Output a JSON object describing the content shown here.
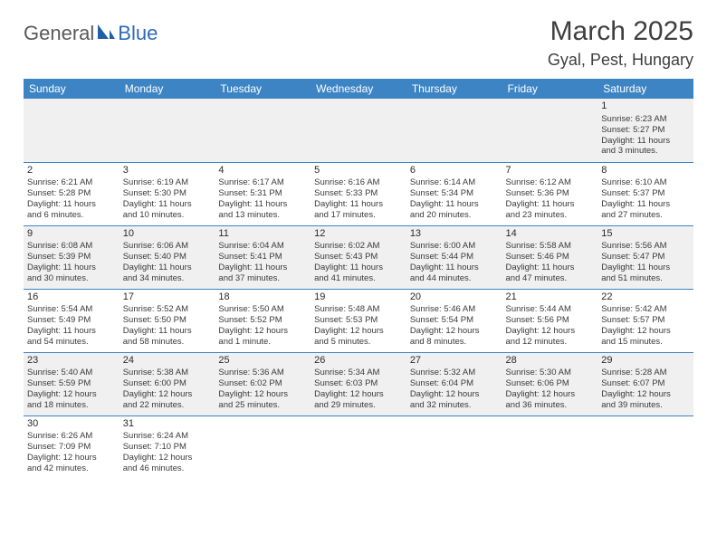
{
  "logo": {
    "general": "General",
    "blue": "Blue"
  },
  "title": {
    "month": "March 2025",
    "location": "Gyal, Pest, Hungary"
  },
  "days": [
    "Sunday",
    "Monday",
    "Tuesday",
    "Wednesday",
    "Thursday",
    "Friday",
    "Saturday"
  ],
  "colors": {
    "header_bg": "#3d84c5",
    "header_fg": "#ffffff",
    "alt_bg": "#f0f0f0",
    "text": "#3a3a3a"
  },
  "weeks": [
    [
      null,
      null,
      null,
      null,
      null,
      null,
      {
        "n": "1",
        "sr": "Sunrise: 6:23 AM",
        "ss": "Sunset: 5:27 PM",
        "d1": "Daylight: 11 hours",
        "d2": "and 3 minutes."
      }
    ],
    [
      {
        "n": "2",
        "sr": "Sunrise: 6:21 AM",
        "ss": "Sunset: 5:28 PM",
        "d1": "Daylight: 11 hours",
        "d2": "and 6 minutes."
      },
      {
        "n": "3",
        "sr": "Sunrise: 6:19 AM",
        "ss": "Sunset: 5:30 PM",
        "d1": "Daylight: 11 hours",
        "d2": "and 10 minutes."
      },
      {
        "n": "4",
        "sr": "Sunrise: 6:17 AM",
        "ss": "Sunset: 5:31 PM",
        "d1": "Daylight: 11 hours",
        "d2": "and 13 minutes."
      },
      {
        "n": "5",
        "sr": "Sunrise: 6:16 AM",
        "ss": "Sunset: 5:33 PM",
        "d1": "Daylight: 11 hours",
        "d2": "and 17 minutes."
      },
      {
        "n": "6",
        "sr": "Sunrise: 6:14 AM",
        "ss": "Sunset: 5:34 PM",
        "d1": "Daylight: 11 hours",
        "d2": "and 20 minutes."
      },
      {
        "n": "7",
        "sr": "Sunrise: 6:12 AM",
        "ss": "Sunset: 5:36 PM",
        "d1": "Daylight: 11 hours",
        "d2": "and 23 minutes."
      },
      {
        "n": "8",
        "sr": "Sunrise: 6:10 AM",
        "ss": "Sunset: 5:37 PM",
        "d1": "Daylight: 11 hours",
        "d2": "and 27 minutes."
      }
    ],
    [
      {
        "n": "9",
        "sr": "Sunrise: 6:08 AM",
        "ss": "Sunset: 5:39 PM",
        "d1": "Daylight: 11 hours",
        "d2": "and 30 minutes."
      },
      {
        "n": "10",
        "sr": "Sunrise: 6:06 AM",
        "ss": "Sunset: 5:40 PM",
        "d1": "Daylight: 11 hours",
        "d2": "and 34 minutes."
      },
      {
        "n": "11",
        "sr": "Sunrise: 6:04 AM",
        "ss": "Sunset: 5:41 PM",
        "d1": "Daylight: 11 hours",
        "d2": "and 37 minutes."
      },
      {
        "n": "12",
        "sr": "Sunrise: 6:02 AM",
        "ss": "Sunset: 5:43 PM",
        "d1": "Daylight: 11 hours",
        "d2": "and 41 minutes."
      },
      {
        "n": "13",
        "sr": "Sunrise: 6:00 AM",
        "ss": "Sunset: 5:44 PM",
        "d1": "Daylight: 11 hours",
        "d2": "and 44 minutes."
      },
      {
        "n": "14",
        "sr": "Sunrise: 5:58 AM",
        "ss": "Sunset: 5:46 PM",
        "d1": "Daylight: 11 hours",
        "d2": "and 47 minutes."
      },
      {
        "n": "15",
        "sr": "Sunrise: 5:56 AM",
        "ss": "Sunset: 5:47 PM",
        "d1": "Daylight: 11 hours",
        "d2": "and 51 minutes."
      }
    ],
    [
      {
        "n": "16",
        "sr": "Sunrise: 5:54 AM",
        "ss": "Sunset: 5:49 PM",
        "d1": "Daylight: 11 hours",
        "d2": "and 54 minutes."
      },
      {
        "n": "17",
        "sr": "Sunrise: 5:52 AM",
        "ss": "Sunset: 5:50 PM",
        "d1": "Daylight: 11 hours",
        "d2": "and 58 minutes."
      },
      {
        "n": "18",
        "sr": "Sunrise: 5:50 AM",
        "ss": "Sunset: 5:52 PM",
        "d1": "Daylight: 12 hours",
        "d2": "and 1 minute."
      },
      {
        "n": "19",
        "sr": "Sunrise: 5:48 AM",
        "ss": "Sunset: 5:53 PM",
        "d1": "Daylight: 12 hours",
        "d2": "and 5 minutes."
      },
      {
        "n": "20",
        "sr": "Sunrise: 5:46 AM",
        "ss": "Sunset: 5:54 PM",
        "d1": "Daylight: 12 hours",
        "d2": "and 8 minutes."
      },
      {
        "n": "21",
        "sr": "Sunrise: 5:44 AM",
        "ss": "Sunset: 5:56 PM",
        "d1": "Daylight: 12 hours",
        "d2": "and 12 minutes."
      },
      {
        "n": "22",
        "sr": "Sunrise: 5:42 AM",
        "ss": "Sunset: 5:57 PM",
        "d1": "Daylight: 12 hours",
        "d2": "and 15 minutes."
      }
    ],
    [
      {
        "n": "23",
        "sr": "Sunrise: 5:40 AM",
        "ss": "Sunset: 5:59 PM",
        "d1": "Daylight: 12 hours",
        "d2": "and 18 minutes."
      },
      {
        "n": "24",
        "sr": "Sunrise: 5:38 AM",
        "ss": "Sunset: 6:00 PM",
        "d1": "Daylight: 12 hours",
        "d2": "and 22 minutes."
      },
      {
        "n": "25",
        "sr": "Sunrise: 5:36 AM",
        "ss": "Sunset: 6:02 PM",
        "d1": "Daylight: 12 hours",
        "d2": "and 25 minutes."
      },
      {
        "n": "26",
        "sr": "Sunrise: 5:34 AM",
        "ss": "Sunset: 6:03 PM",
        "d1": "Daylight: 12 hours",
        "d2": "and 29 minutes."
      },
      {
        "n": "27",
        "sr": "Sunrise: 5:32 AM",
        "ss": "Sunset: 6:04 PM",
        "d1": "Daylight: 12 hours",
        "d2": "and 32 minutes."
      },
      {
        "n": "28",
        "sr": "Sunrise: 5:30 AM",
        "ss": "Sunset: 6:06 PM",
        "d1": "Daylight: 12 hours",
        "d2": "and 36 minutes."
      },
      {
        "n": "29",
        "sr": "Sunrise: 5:28 AM",
        "ss": "Sunset: 6:07 PM",
        "d1": "Daylight: 12 hours",
        "d2": "and 39 minutes."
      }
    ],
    [
      {
        "n": "30",
        "sr": "Sunrise: 6:26 AM",
        "ss": "Sunset: 7:09 PM",
        "d1": "Daylight: 12 hours",
        "d2": "and 42 minutes."
      },
      {
        "n": "31",
        "sr": "Sunrise: 6:24 AM",
        "ss": "Sunset: 7:10 PM",
        "d1": "Daylight: 12 hours",
        "d2": "and 46 minutes."
      },
      null,
      null,
      null,
      null,
      null
    ]
  ]
}
